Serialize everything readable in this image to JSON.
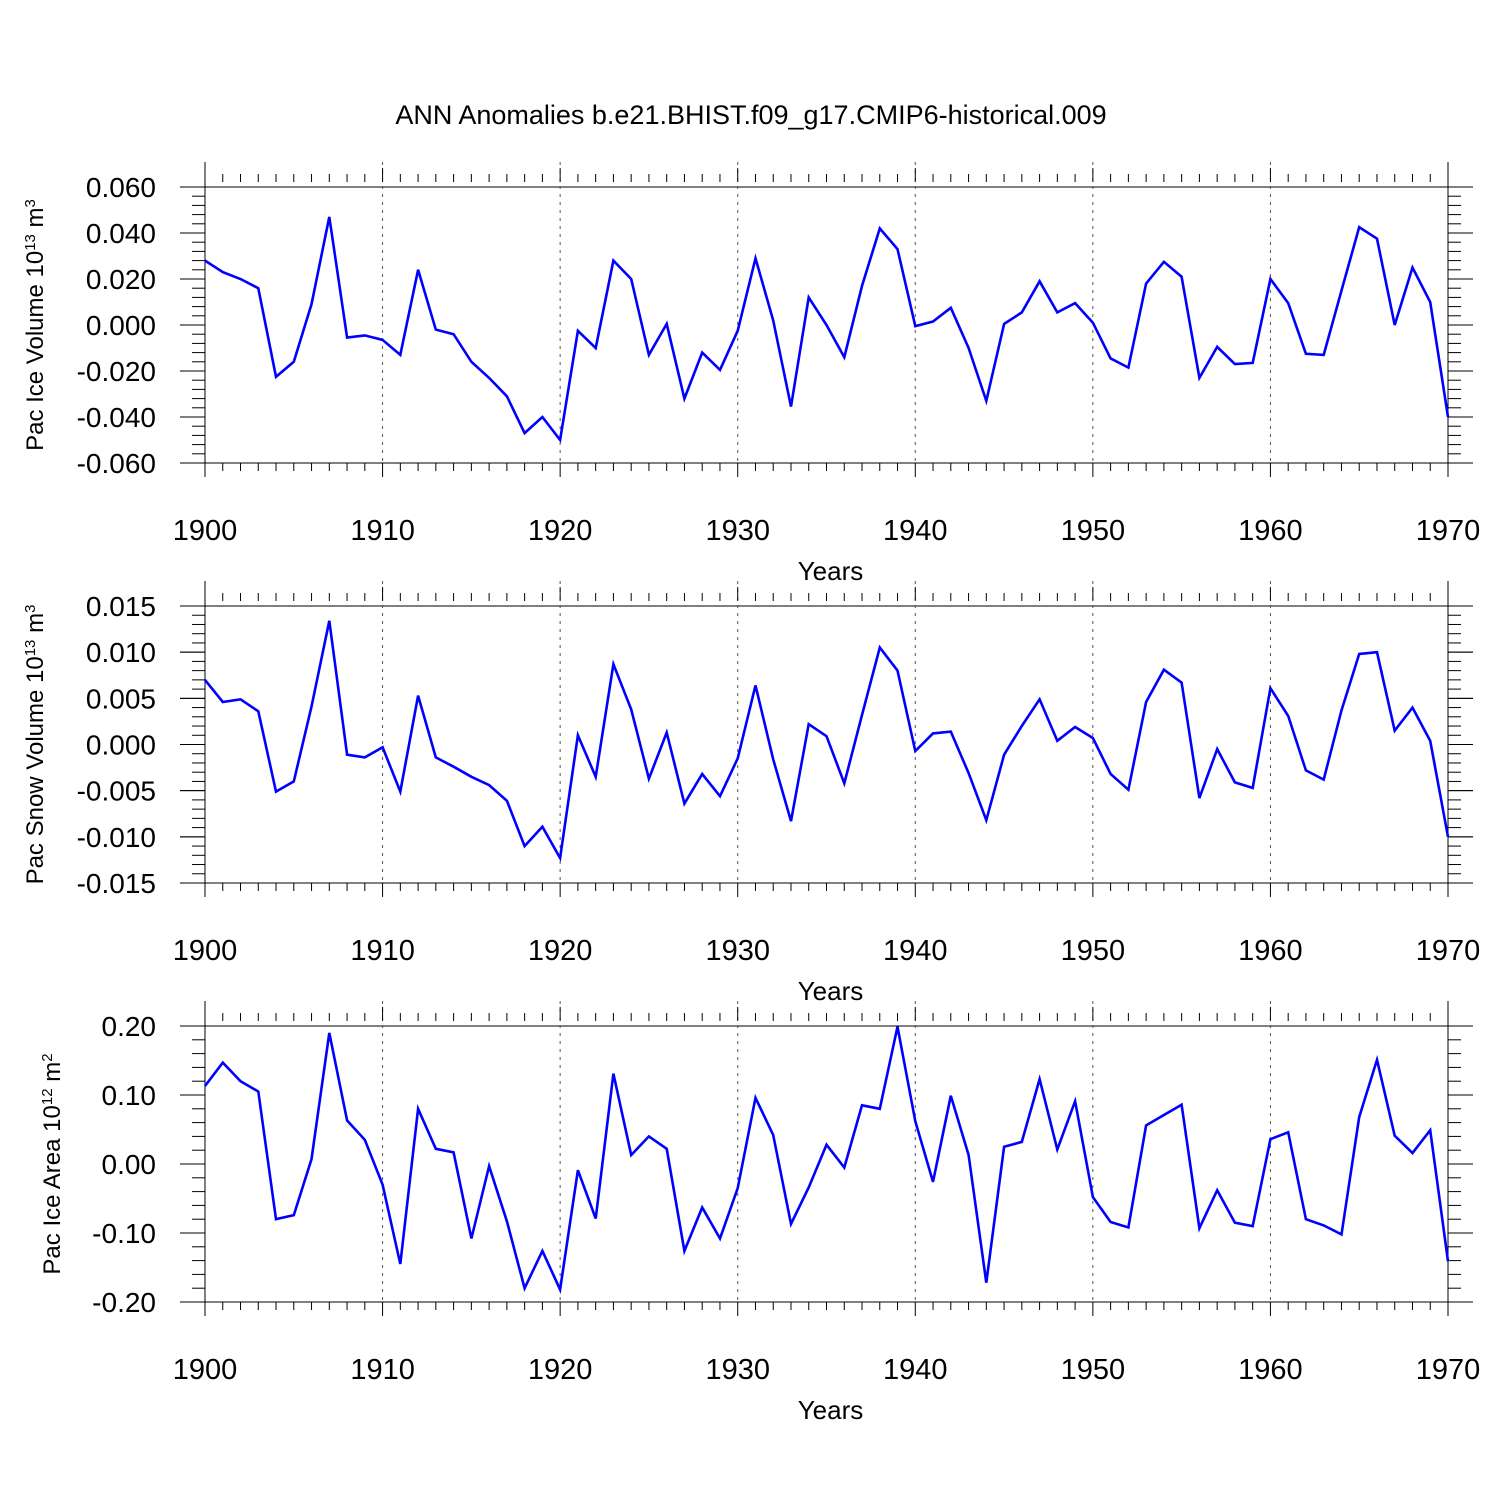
{
  "title": "ANN Anomalies b.e21.BHIST.f09_g17.CMIP6-historical.009",
  "chart_data": [
    {
      "type": "line",
      "title": "ANN Anomalies b.e21.BHIST.f09_g17.CMIP6-historical.009",
      "ylabel": {
        "main": "Pac Ice Volume 10",
        "sup": "13",
        "unit": " m",
        "unit_sup": "3"
      },
      "xlabel": "Years",
      "xlim": [
        1900,
        1970
      ],
      "ylim": [
        -0.06,
        0.06
      ],
      "xticks": [
        "1900",
        "1910",
        "1920",
        "1930",
        "1940",
        "1950",
        "1960",
        "1970"
      ],
      "yticks": [
        {
          "v": 0.06,
          "label": "0.060"
        },
        {
          "v": 0.04,
          "label": "0.040"
        },
        {
          "v": 0.02,
          "label": "0.020"
        },
        {
          "v": 0.0,
          "label": "0.000"
        },
        {
          "v": -0.02,
          "label": "-0.020"
        },
        {
          "v": -0.04,
          "label": "-0.040"
        },
        {
          "v": -0.06,
          "label": "-0.060"
        }
      ],
      "grid": "vertical dashed at major x ticks",
      "series": [
        {
          "name": "Pac Ice Volume",
          "color": "#0000ff",
          "x_start": 1900,
          "values": [
            0.028,
            0.023,
            0.02,
            0.016,
            -0.0225,
            -0.016,
            0.009,
            0.047,
            -0.0055,
            -0.0045,
            -0.0065,
            -0.013,
            0.024,
            -0.002,
            -0.004,
            -0.016,
            -0.023,
            -0.031,
            -0.047,
            -0.04,
            -0.05,
            -0.0025,
            -0.01,
            0.028,
            0.02,
            -0.013,
            0.0005,
            -0.032,
            -0.012,
            -0.0195,
            -0.0025,
            0.029,
            0.002,
            -0.0355,
            0.012,
            0.0,
            -0.014,
            0.017,
            0.042,
            0.033,
            -0.0005,
            0.0015,
            0.0075,
            -0.01,
            -0.033,
            0.0005,
            0.0055,
            0.019,
            0.0055,
            0.0095,
            0.001,
            -0.0145,
            -0.0185,
            0.018,
            0.0275,
            0.021,
            -0.023,
            -0.0095,
            -0.017,
            -0.0165,
            0.02,
            0.0095,
            -0.0125,
            -0.013,
            0.015,
            0.0425,
            0.0375,
            0.0,
            0.025,
            0.01,
            -0.04
          ]
        }
      ]
    },
    {
      "type": "line",
      "ylabel": {
        "main": "Pac Snow Volume 10",
        "sup": "13",
        "unit": " m",
        "unit_sup": "3"
      },
      "xlabel": "Years",
      "xlim": [
        1900,
        1970
      ],
      "ylim": [
        -0.015,
        0.015
      ],
      "xticks": [
        "1900",
        "1910",
        "1920",
        "1930",
        "1940",
        "1950",
        "1960",
        "1970"
      ],
      "yticks": [
        {
          "v": 0.015,
          "label": "0.015"
        },
        {
          "v": 0.01,
          "label": "0.010"
        },
        {
          "v": 0.005,
          "label": "0.005"
        },
        {
          "v": 0.0,
          "label": "0.000"
        },
        {
          "v": -0.005,
          "label": "-0.005"
        },
        {
          "v": -0.01,
          "label": "-0.010"
        },
        {
          "v": -0.015,
          "label": "-0.015"
        }
      ],
      "grid": "vertical dashed at major x ticks",
      "series": [
        {
          "name": "Pac Snow Volume",
          "color": "#0000ff",
          "x_start": 1900,
          "values": [
            0.007,
            0.0046,
            0.0049,
            0.0036,
            -0.0051,
            -0.004,
            0.0041,
            0.0134,
            -0.0011,
            -0.0014,
            -0.0003,
            -0.0051,
            0.0053,
            -0.0014,
            -0.0024,
            -0.0035,
            -0.0044,
            -0.0061,
            -0.011,
            -0.0089,
            -0.0123,
            0.001,
            -0.0035,
            0.0087,
            0.0038,
            -0.0037,
            0.0013,
            -0.0064,
            -0.0032,
            -0.0056,
            -0.0015,
            0.0064,
            -0.0016,
            -0.0083,
            0.0022,
            0.0009,
            -0.0042,
            0.0032,
            0.0105,
            0.008,
            -0.0007,
            0.0012,
            0.0014,
            -0.0031,
            -0.0082,
            -0.0011,
            0.002,
            0.0049,
            0.0004,
            0.0019,
            0.0007,
            -0.0032,
            -0.0049,
            0.0046,
            0.0081,
            0.0067,
            -0.0058,
            -0.0005,
            -0.0041,
            -0.0047,
            0.0061,
            0.0031,
            -0.0028,
            -0.0038,
            0.0037,
            0.0098,
            0.01,
            0.0015,
            0.004,
            0.0004,
            -0.01
          ]
        }
      ]
    },
    {
      "type": "line",
      "ylabel": {
        "main": "Pac Ice Area 10",
        "sup": "12",
        "unit": " m",
        "unit_sup": "2"
      },
      "xlabel": "Years",
      "xlim": [
        1900,
        1970
      ],
      "ylim": [
        -0.2,
        0.2
      ],
      "xticks": [
        "1900",
        "1910",
        "1920",
        "1930",
        "1940",
        "1950",
        "1960",
        "1970"
      ],
      "yticks": [
        {
          "v": 0.2,
          "label": "0.20"
        },
        {
          "v": 0.1,
          "label": "0.10"
        },
        {
          "v": 0.0,
          "label": "0.00"
        },
        {
          "v": -0.1,
          "label": "-0.10"
        },
        {
          "v": -0.2,
          "label": "-0.20"
        }
      ],
      "grid": "vertical dashed at major x ticks",
      "series": [
        {
          "name": "Pac Ice Area",
          "color": "#0000ff",
          "x_start": 1900,
          "values": [
            0.113,
            0.147,
            0.12,
            0.105,
            -0.08,
            -0.074,
            0.007,
            0.19,
            0.063,
            0.035,
            -0.03,
            -0.145,
            0.08,
            0.022,
            0.017,
            -0.108,
            -0.003,
            -0.083,
            -0.18,
            -0.126,
            -0.182,
            -0.009,
            -0.079,
            0.131,
            0.013,
            0.04,
            0.022,
            -0.126,
            -0.063,
            -0.108,
            -0.035,
            0.096,
            0.042,
            -0.087,
            -0.034,
            0.028,
            -0.005,
            0.085,
            0.08,
            0.199,
            0.062,
            -0.026,
            0.099,
            0.013,
            -0.172,
            0.025,
            0.032,
            0.123,
            0.021,
            0.091,
            -0.048,
            -0.084,
            -0.092,
            0.056,
            0.071,
            0.086,
            -0.093,
            -0.038,
            -0.085,
            -0.09,
            0.036,
            0.046,
            -0.08,
            -0.089,
            -0.102,
            0.068,
            0.151,
            0.041,
            0.016,
            0.049,
            -0.141
          ]
        }
      ]
    }
  ]
}
